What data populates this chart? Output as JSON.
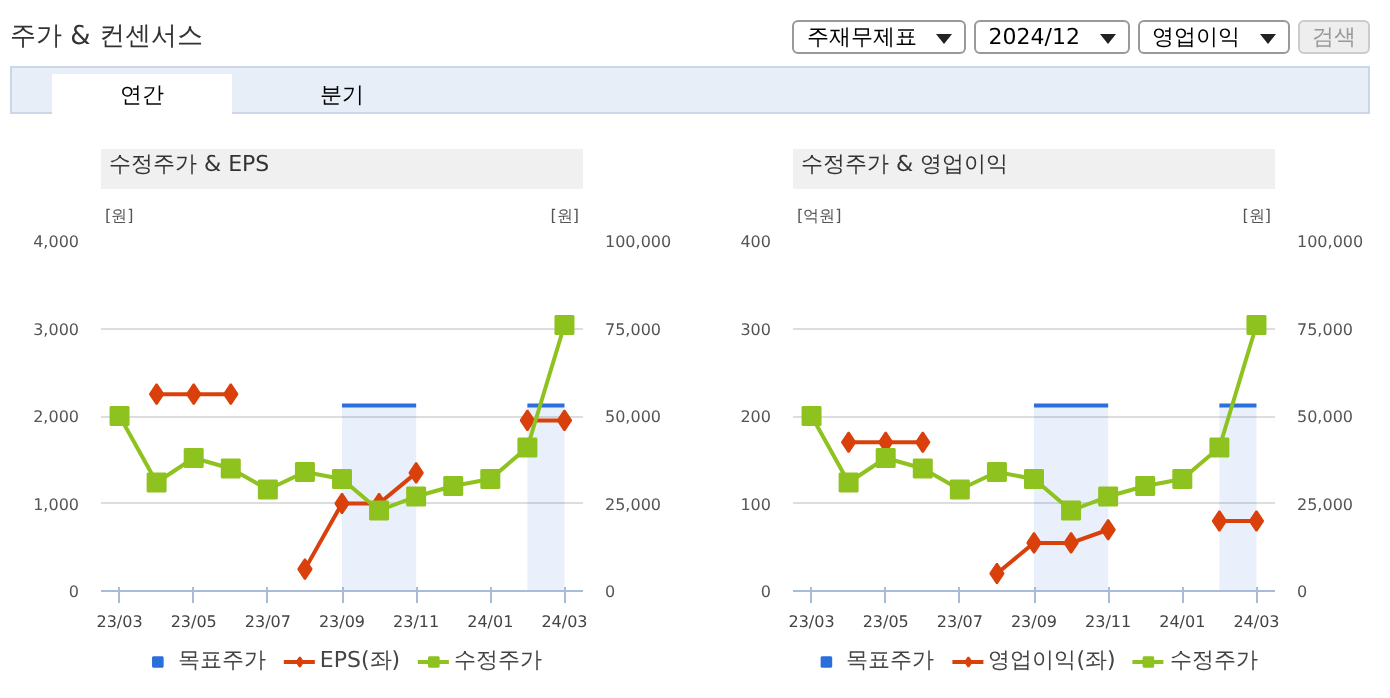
{
  "chart_data": [
    {
      "type": "line",
      "title": "수정주가 & EPS",
      "ylabel": "[원]",
      "y2label": "[원]",
      "annotations": [
        "주가 & 컨센서스",
        "주재무제표",
        "2024/12",
        "영업이익",
        "검색",
        "연간",
        "분기"
      ],
      "categories": [
        "23/03",
        null,
        "23/05",
        null,
        "23/07",
        null,
        "23/09",
        null,
        "23/11",
        null,
        "24/01",
        null,
        "24/03"
      ],
      "ylim": [
        0,
        4000
      ],
      "yticks": [
        {
          "value": 0,
          "label": "0"
        },
        {
          "value": 1000,
          "label": "1,000"
        },
        {
          "value": 2000,
          "label": "2,000"
        },
        {
          "value": 3000,
          "label": "3,000"
        },
        {
          "value": 4000,
          "label": "4,000"
        }
      ],
      "y2lim": [
        0,
        100000
      ],
      "y2ticks": [
        {
          "value": 0,
          "label": "0"
        },
        {
          "value": 25000,
          "label": "25,000"
        },
        {
          "value": 50000,
          "label": "50,000"
        },
        {
          "value": 75000,
          "label": "75,000"
        },
        {
          "value": 100000,
          "label": "100,000"
        }
      ],
      "grid": "y",
      "legend": "bottom",
      "series": [
        {
          "name": "목표주가",
          "type": "area",
          "axis": "y2",
          "color": "#2a6fdb",
          "values": [
            null,
            null,
            null,
            null,
            null,
            null,
            53000,
            53000,
            53000,
            null,
            null,
            53000,
            53000
          ]
        },
        {
          "name": "EPS(좌)",
          "marker": "diamond",
          "color": "#d9400b",
          "values": [
            null,
            2250,
            2250,
            2250,
            null,
            250,
            1000,
            1000,
            1350,
            null,
            null,
            1950,
            1950
          ]
        },
        {
          "name": "수정주가",
          "marker": "square",
          "axis": "y2",
          "color": "#8dc21f",
          "values": [
            50000,
            31000,
            38000,
            35000,
            29000,
            34000,
            32000,
            23000,
            27000,
            30000,
            32000,
            41000,
            76000
          ]
        }
      ]
    },
    {
      "type": "line",
      "title": "수정주가 & 영업이익",
      "ylabel": "[억원]",
      "y2label": "[원]",
      "categories": [
        "23/03",
        null,
        "23/05",
        null,
        "23/07",
        null,
        "23/09",
        null,
        "23/11",
        null,
        "24/01",
        null,
        "24/03"
      ],
      "ylim": [
        0,
        400
      ],
      "yticks": [
        0,
        100,
        200,
        300,
        400
      ],
      "y2lim": [
        0,
        100000
      ],
      "y2ticks": [
        {
          "value": 0,
          "label": "0"
        },
        {
          "value": 25000,
          "label": "25,000"
        },
        {
          "value": 50000,
          "label": "50,000"
        },
        {
          "value": 75000,
          "label": "75,000"
        },
        {
          "value": 100000,
          "label": "100,000"
        }
      ],
      "grid": "y",
      "legend": "bottom",
      "series": [
        {
          "name": "목표주가",
          "type": "area",
          "axis": "y2",
          "color": "#2a6fdb",
          "values": [
            null,
            null,
            null,
            null,
            null,
            null,
            53000,
            53000,
            53000,
            null,
            null,
            53000,
            53000
          ]
        },
        {
          "name": "영업이익(좌)",
          "marker": "diamond",
          "color": "#d9400b",
          "values": [
            null,
            170,
            170,
            170,
            null,
            20,
            55,
            55,
            70,
            null,
            null,
            80,
            80
          ]
        },
        {
          "name": "수정주가",
          "marker": "square",
          "axis": "y2",
          "color": "#8dc21f",
          "values": [
            50000,
            31000,
            38000,
            35000,
            29000,
            34000,
            32000,
            23000,
            27000,
            30000,
            32000,
            41000,
            76000
          ]
        }
      ]
    }
  ]
}
